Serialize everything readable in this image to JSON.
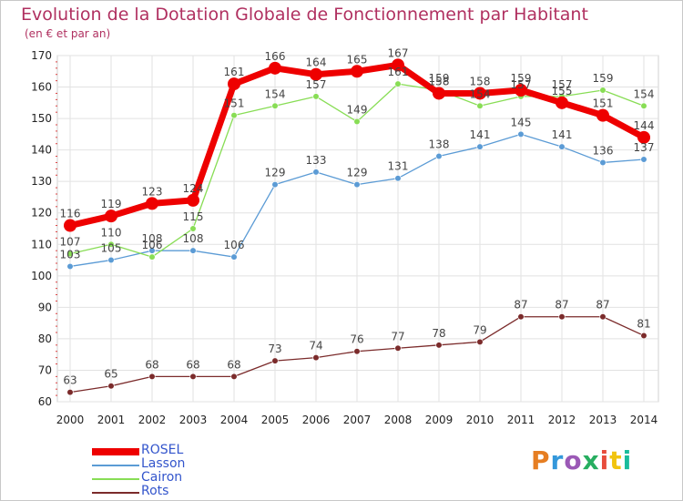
{
  "header": {
    "title": "Evolution de la Dotation Globale de Fonctionnement par Habitant",
    "subtitle": "(en € et par an)"
  },
  "logo": {
    "text": "Proxiti",
    "colors": [
      "#e67e22",
      "#3498db",
      "#9b59b6",
      "#27ae60",
      "#e74c3c",
      "#f1c40f",
      "#1abc9c"
    ]
  },
  "chart_data": {
    "type": "line",
    "title": "Evolution de la Dotation Globale de Fonctionnement par Habitant",
    "ylabel": "(en € et par an)",
    "xlabel": "",
    "ylim": [
      60,
      170
    ],
    "yticks": [
      60,
      70,
      80,
      90,
      100,
      110,
      120,
      130,
      140,
      150,
      160,
      170
    ],
    "categories": [
      "2000",
      "2001",
      "2002",
      "2003",
      "2004",
      "2005",
      "2006",
      "2007",
      "2008",
      "2009",
      "2010",
      "2011",
      "2012",
      "2013",
      "2014"
    ],
    "grid": true,
    "legend_position": "bottom-left",
    "series": [
      {
        "name": "ROSEL",
        "color": "#ee0000",
        "values": [
          116,
          119,
          123,
          124,
          161,
          166,
          164,
          165,
          167,
          158,
          158,
          159,
          155,
          151,
          144
        ]
      },
      {
        "name": "Lasson",
        "color": "#5b9bd5",
        "values": [
          103,
          105,
          108,
          108,
          106,
          129,
          133,
          129,
          131,
          138,
          141,
          145,
          141,
          136,
          137
        ]
      },
      {
        "name": "Cairon",
        "color": "#88dd55",
        "values": [
          107,
          110,
          106,
          115,
          151,
          154,
          157,
          149,
          161,
          159,
          154,
          157,
          157,
          159,
          154
        ]
      },
      {
        "name": "Rots",
        "color": "#7b2b2b",
        "values": [
          63,
          65,
          68,
          68,
          68,
          73,
          74,
          76,
          77,
          78,
          79,
          87,
          87,
          87,
          81
        ]
      }
    ]
  }
}
